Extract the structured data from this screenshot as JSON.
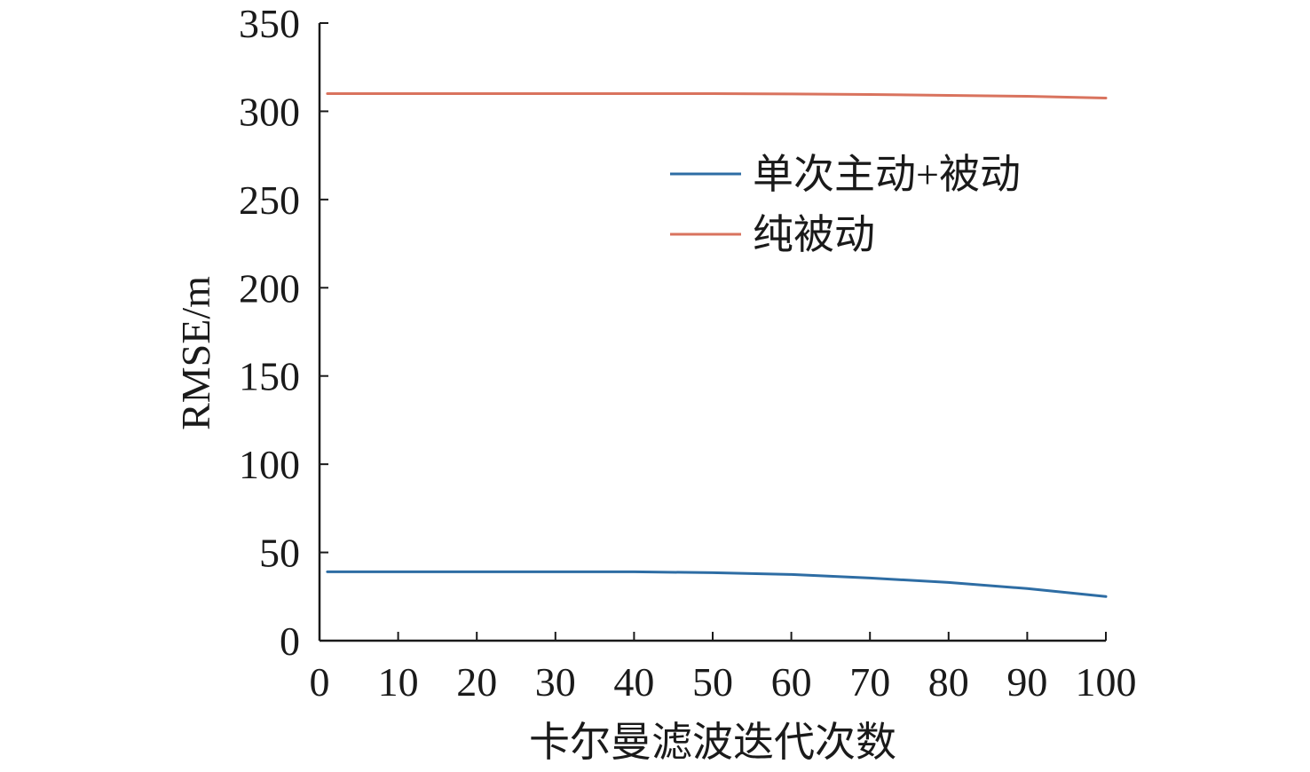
{
  "chart_data": {
    "type": "line",
    "xlabel": "卡尔曼滤波迭代次数",
    "ylabel": "RMSE/m",
    "xlim": [
      0,
      100
    ],
    "ylim": [
      0,
      350
    ],
    "xticks": [
      0,
      10,
      20,
      30,
      40,
      50,
      60,
      70,
      80,
      90,
      100
    ],
    "yticks": [
      0,
      50,
      100,
      150,
      200,
      250,
      300,
      350
    ],
    "grid": false,
    "legend_position": "upper-right",
    "series": [
      {
        "name": "单次主动+被动",
        "color": "#2e6da4",
        "x": [
          1,
          10,
          20,
          30,
          40,
          50,
          60,
          70,
          80,
          90,
          100
        ],
        "y": [
          39,
          39,
          39,
          39,
          39,
          38.5,
          37.5,
          35.5,
          33,
          29.5,
          25
        ]
      },
      {
        "name": "纯被动",
        "color": "#d9735e",
        "x": [
          1,
          10,
          20,
          30,
          40,
          50,
          60,
          70,
          80,
          90,
          100
        ],
        "y": [
          310,
          310,
          310,
          310,
          310,
          310,
          309.8,
          309.5,
          309,
          308.5,
          307.5
        ]
      }
    ]
  }
}
